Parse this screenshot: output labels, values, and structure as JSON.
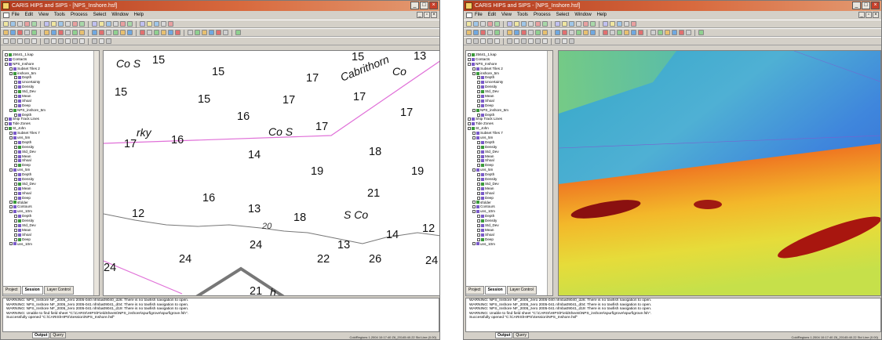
{
  "left_window": {
    "title": "CARIS HIPS and SIPS - [NPS_Inshore.hsf]",
    "menu": [
      "File",
      "Edit",
      "View",
      "Tools",
      "Process",
      "Select",
      "Window",
      "Help"
    ],
    "tree": [
      "25641_1.kap",
      "Contacts",
      "NPS_Inshore",
      "Subset Tiles 2",
      "inshore_5m",
      "Depth",
      "Uncertainty",
      "Density",
      "Std_Dev",
      "Mean",
      "Shoal",
      "Deep",
      "NPS_inshore_5m",
      "Depth",
      "Ship Track Lines",
      "Tide Zones",
      "St_John",
      "Subset Tiles 7",
      "uns_5m",
      "Depth",
      "Density",
      "Std_Dev",
      "Mean",
      "Shoal",
      "Deep",
      "uns_5m",
      "Depth",
      "Density",
      "Std_Dev",
      "Mean",
      "Shoal",
      "Deep",
      "sfolder",
      "Contours",
      "uns_10m",
      "Depth",
      "Density",
      "Std_Dev",
      "Mean",
      "Shoal",
      "Deep",
      "uns_10m"
    ],
    "panel_tabs": [
      "Project",
      "Session",
      "Layer Control"
    ],
    "chart": {
      "soundings": [
        {
          "t": "15"
        },
        {
          "t": "15"
        },
        {
          "t": "15"
        },
        {
          "t": "17"
        },
        {
          "t": "15"
        },
        {
          "t": "13"
        },
        {
          "t": "15"
        },
        {
          "t": "17"
        },
        {
          "t": "17"
        },
        {
          "t": "16"
        },
        {
          "t": "17"
        },
        {
          "t": "17"
        },
        {
          "t": "16"
        },
        {
          "t": "17"
        },
        {
          "t": "14"
        },
        {
          "t": "18"
        },
        {
          "t": "19"
        },
        {
          "t": "19"
        },
        {
          "t": "16"
        },
        {
          "t": "21"
        },
        {
          "t": "12"
        },
        {
          "t": "13"
        },
        {
          "t": "18"
        },
        {
          "t": "14"
        },
        {
          "t": "12"
        },
        {
          "t": "24"
        },
        {
          "t": "13"
        },
        {
          "t": "24"
        },
        {
          "t": "22"
        },
        {
          "t": "26"
        },
        {
          "t": "24"
        },
        {
          "t": "24"
        },
        {
          "t": "21"
        }
      ],
      "labels": [
        {
          "t": "Co S"
        },
        {
          "t": "Co S"
        },
        {
          "t": "rky"
        },
        {
          "t": "Cabrithorn"
        },
        {
          "t": "Co"
        },
        {
          "t": "S Co"
        },
        {
          "t": "h"
        }
      ],
      "contour_label": "20"
    }
  },
  "right_window": {
    "title": "CARIS HIPS and SIPS - [NPS_Inshore.hsf]",
    "menu": [
      "File",
      "Edit",
      "View",
      "Tools",
      "Process",
      "Select",
      "Window",
      "Help"
    ],
    "tree": [
      "25641_1.kap",
      "Contacts",
      "NPS_Inshore",
      "Subset Tiles 2",
      "inshore_5m",
      "Depth",
      "Uncertainty",
      "Density",
      "Std_Dev",
      "Mean",
      "Shoal",
      "Deep",
      "NPS_inshore_5m",
      "Depth",
      "Ship Track Lines",
      "Tide Zones",
      "St_John",
      "Subset Tiles 7",
      "uns_5m",
      "Depth",
      "Density",
      "Std_Dev",
      "Mean",
      "Shoal",
      "Deep",
      "uns_5m",
      "Depth",
      "Density",
      "Std_Dev",
      "Mean",
      "Shoal",
      "Deep",
      "sfolder",
      "Contours",
      "uns_10m",
      "Depth",
      "Density",
      "Std_Dev",
      "Mean",
      "Shoal",
      "Deep",
      "uns_10m"
    ],
    "panel_tabs": [
      "Project",
      "Session",
      "Layer Control"
    ]
  },
  "output_lines": [
    "WARNING: NPS_Inshore NF_2005_zero 2005-040 nfmba09040_d26: There is no towfish navigation to open.",
    "WARNING: NPS_Inshore NF_2005_zero 2005-041 nfmba09041_d04: There is no towfish navigation to open.",
    "WARNING: NPS_Inshore NF_2005_zero 2005-041 nfmba09041_d19: There is no towfish navigation to open.",
    "WARNING: Unable to find field sheet \"C:\\CARIS\\HIPS\\FieldSheets\\NPS_inshore\\spurfigrove\\spurfigrove.fsh\".",
    "Successfully opened \"C:\\CARIS\\HIPS\\Session\\NPS_Inshore.hsf\""
  ],
  "output_tabs": [
    "Output",
    "Query"
  ],
  "status_left": "ColdRegions 1.2004 10:17:40 Z6_20145:40.22 Std Line  (0.00)",
  "status_right": "ColdRegions 1.2004 10:17:40 Z6_20145:40.22 Std Line  (0.00)",
  "colors": {
    "chart_contour_pink": "#e070d8",
    "title_red": "#b23a1e",
    "bathy_red": "#d83a1a",
    "bathy_blue": "#3a7ad8"
  }
}
